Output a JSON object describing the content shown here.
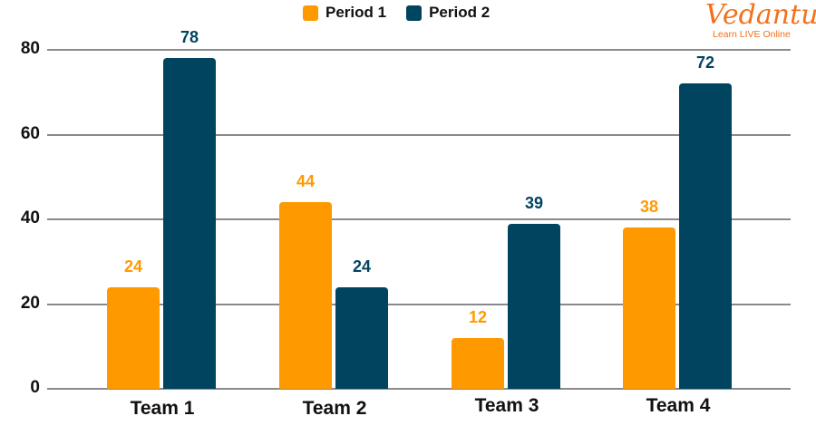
{
  "legend": [
    {
      "label": "Period 1",
      "color": "#ff9900"
    },
    {
      "label": "Period 2",
      "color": "#004460"
    }
  ],
  "logo": {
    "name": "Vedantu",
    "tagline": "Learn LIVE Online",
    "color": "#f2711c"
  },
  "yaxis": {
    "ticks": [
      "0",
      "20",
      "40",
      "60",
      "80"
    ]
  },
  "chart_data": {
    "type": "bar",
    "title": "",
    "xlabel": "",
    "ylabel": "",
    "categories": [
      "Team 1",
      "Team 2",
      "Team 3",
      "Team 4"
    ],
    "series": [
      {
        "name": "Period 1",
        "color": "#ff9900",
        "values": [
          24,
          44,
          12,
          38
        ]
      },
      {
        "name": "Period 2",
        "color": "#004460",
        "values": [
          78,
          24,
          39,
          72
        ]
      }
    ],
    "ylim": [
      0,
      80
    ],
    "yticks": [
      0,
      20,
      40,
      60,
      80
    ],
    "grid": true,
    "legend_position": "top",
    "data_labels": true
  }
}
